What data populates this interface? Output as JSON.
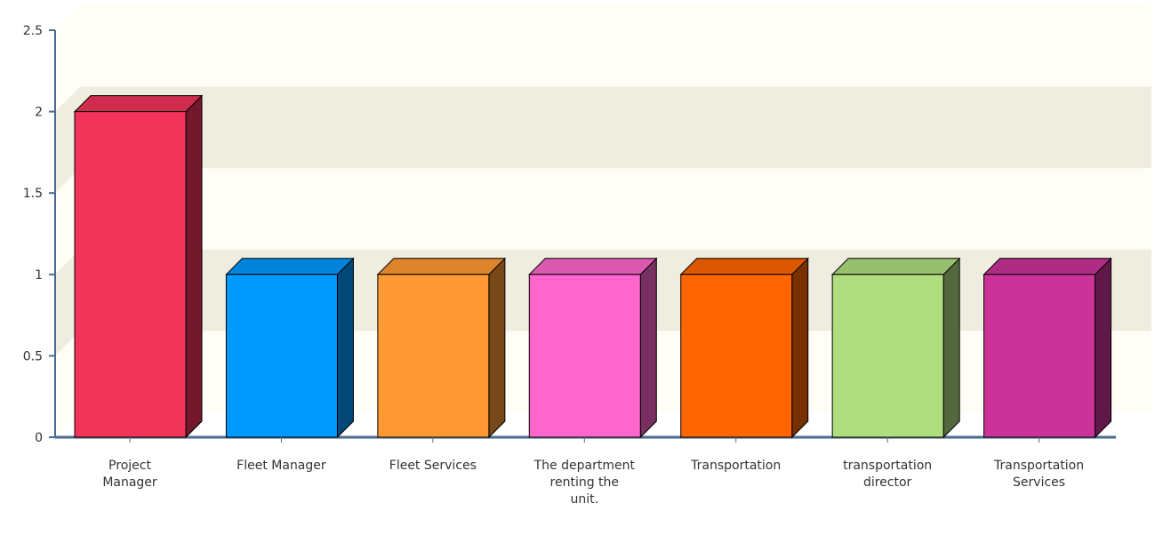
{
  "chart_data": {
    "type": "bar3d",
    "categories": [
      "Project Manager",
      "Fleet Manager",
      "Fleet Services",
      "The department renting the unit.",
      "Transportation",
      "transportation director",
      "Transportation Services"
    ],
    "values": [
      2,
      1,
      1,
      1,
      1,
      1,
      1
    ],
    "colors": [
      "#f2335a",
      "#0099ff",
      "#ff9933",
      "#ff66cc",
      "#ff6600",
      "#b0de7f",
      "#cc3399"
    ],
    "ylim": [
      0,
      2.5
    ],
    "yticks": [
      0,
      0.5,
      1,
      1.5,
      2,
      2.5
    ],
    "grid": true
  }
}
